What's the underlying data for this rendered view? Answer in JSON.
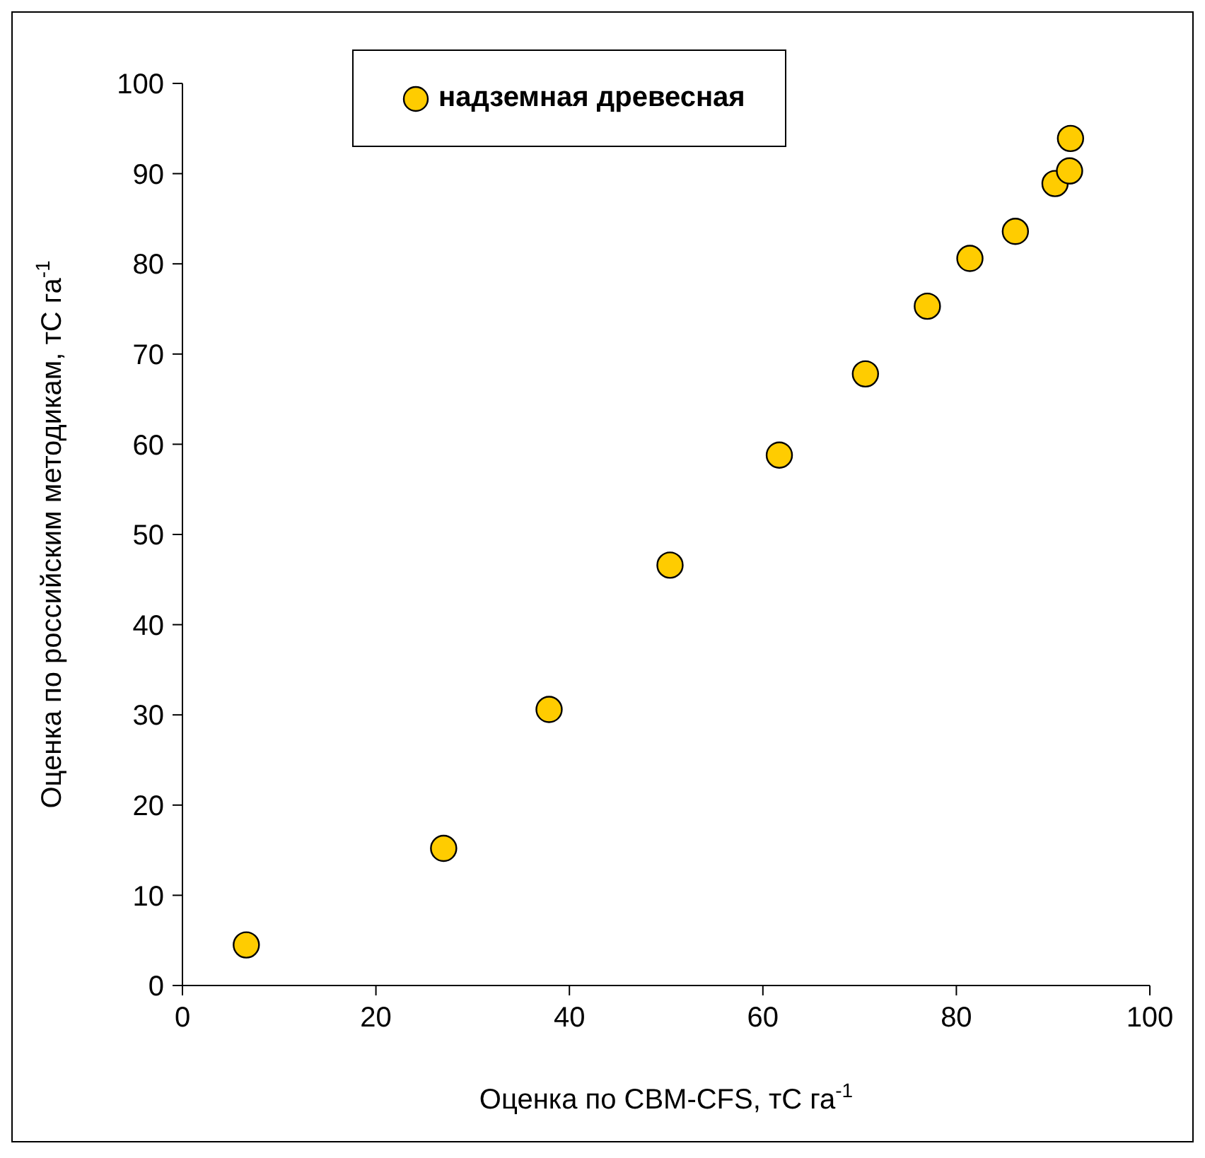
{
  "chart_data": {
    "type": "scatter",
    "xlabel": "Оценка по CBM-CFS, тС га$^{-1}$",
    "ylabel": "Оценка по российским методикам, тС га$^{-1}$",
    "x": [
      6.6,
      27.0,
      37.9,
      50.4,
      61.7,
      70.6,
      77.0,
      81.4,
      86.1,
      90.2,
      91.7,
      91.8
    ],
    "series": [
      {
        "name": "надземная древесная",
        "color": "#ffcc00",
        "values": [
          4.5,
          15.2,
          30.6,
          46.6,
          58.8,
          67.8,
          75.3,
          80.6,
          83.6,
          88.9,
          90.3,
          93.9
        ]
      }
    ],
    "xlim": [
      0,
      100
    ],
    "xticks": [
      0,
      20,
      40,
      60,
      80,
      100
    ],
    "ylim": [
      0,
      100
    ],
    "yticks": [
      0,
      10,
      20,
      30,
      40,
      50,
      60,
      70,
      80,
      90,
      100
    ],
    "grid": false,
    "legend": "top left",
    "marker": "circle"
  }
}
